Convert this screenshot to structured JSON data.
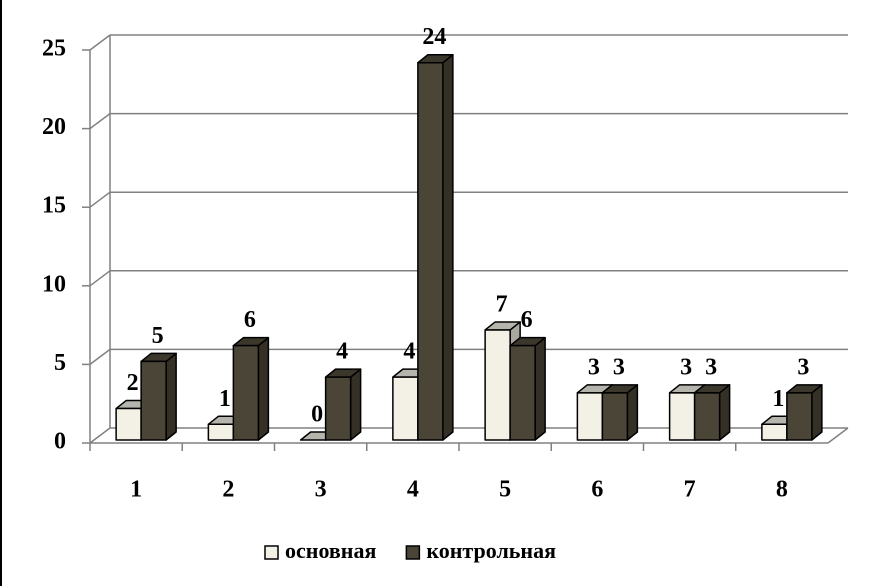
{
  "chart_data": {
    "type": "bar",
    "categories": [
      "1",
      "2",
      "3",
      "4",
      "5",
      "6",
      "7",
      "8"
    ],
    "series": [
      {
        "name": "основная",
        "color": "#f3f1e6",
        "values": [
          2,
          1,
          0,
          4,
          7,
          3,
          3,
          1
        ]
      },
      {
        "name": "контрольная",
        "color": "#4a4536",
        "values": [
          5,
          6,
          4,
          24,
          6,
          3,
          3,
          3
        ]
      }
    ],
    "ylim": [
      0,
      25
    ],
    "yticks": [
      0,
      5,
      10,
      15,
      20,
      25
    ],
    "grid": true,
    "legend": "bottom"
  }
}
